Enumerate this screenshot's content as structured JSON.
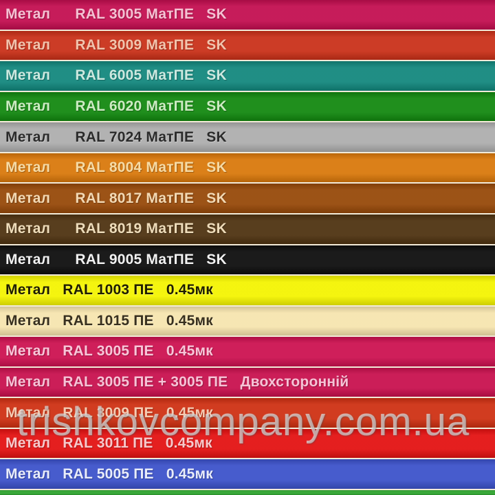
{
  "watermark": {
    "text": "trishkovcompany.com.ua"
  },
  "rows": [
    {
      "label": "Метал      RAL 3005 МатПЕ   SK",
      "bg": "#C30E50",
      "fg": "#F5C2D3"
    },
    {
      "label": "Метал      RAL 3009 МатПЕ   SK",
      "bg": "#C93018",
      "fg": "#F2C4AD"
    },
    {
      "label": "Метал      RAL 6005 МатПЕ   SK",
      "bg": "#12877D",
      "fg": "#CDE9E0"
    },
    {
      "label": "Метал      RAL 6020 МатПЕ   SK",
      "bg": "#12880F",
      "fg": "#CDEBC3"
    },
    {
      "label": "Метал      RAL 7024 МатПЕ   SK",
      "bg": "#ADADAD",
      "fg": "#2B2B2B",
      "dark": true
    },
    {
      "label": "Метал      RAL 8004 МатПЕ   SK",
      "bg": "#D9780B",
      "fg": "#F6DBA6"
    },
    {
      "label": "Метал      RAL 8017 МатПЕ   SK",
      "bg": "#964808",
      "fg": "#F3D9B4"
    },
    {
      "label": "Метал      RAL 8019 МатПЕ   SK",
      "bg": "#4E3210",
      "fg": "#EEDCBA"
    },
    {
      "label": "Метал      RAL 9005 МатПЕ   SK",
      "bg": "#0D0D0D",
      "fg": "#F2F2F2"
    },
    {
      "label": "Метал   RAL 1003 ПЕ   0.45мк",
      "bg": "#F4F400",
      "fg": "#1F1D00",
      "dark": true
    },
    {
      "label": "Метал   RAL 1015 ПЕ   0.45мк",
      "bg": "#F6E4AE",
      "fg": "#38301F",
      "dark": true
    },
    {
      "label": "Метал   RAL 3005 ПЕ   0.45мк",
      "bg": "#CC1150",
      "fg": "#F8C6D8"
    },
    {
      "label": "Метал   RAL 3005 ПЕ + 3005 ПЕ   Двохсторонній",
      "bg": "#C8104E",
      "fg": "#F6C3D6"
    },
    {
      "label": "Метал   RAL 3009 ПЕ   0.45мк",
      "bg": "#CE3012",
      "fg": "#F5CBB3"
    },
    {
      "label": "Метал   RAL 3011 ПЕ   0.45мк",
      "bg": "#E31111",
      "fg": "#F7C9CB"
    },
    {
      "label": "Метал   RAL 5005 ПЕ   0.45мк",
      "bg": "#3C52CA",
      "fg": "#E9EDFA"
    },
    {
      "label": "",
      "bg": "#2EA32E",
      "partial": true
    }
  ]
}
